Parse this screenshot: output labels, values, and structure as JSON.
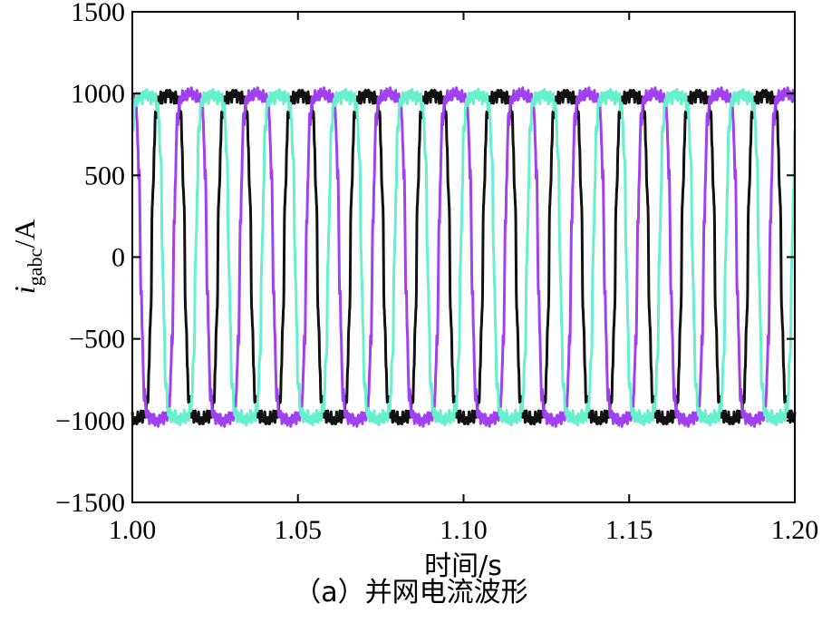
{
  "chart_data": {
    "type": "line",
    "title": "",
    "xlabel": "时间/s",
    "ylabel": {
      "var": "i",
      "sub": "gabc",
      "unit": "/A"
    },
    "caption": "（a）并网电流波形",
    "xlim": [
      1.0,
      1.2
    ],
    "ylim": [
      -1500,
      1500
    ],
    "xticks": [
      1.0,
      1.05,
      1.1,
      1.15,
      1.2
    ],
    "xtick_labels": [
      "1.00",
      "1.05",
      "1.10",
      "1.15",
      "1.20"
    ],
    "yticks": [
      -1500,
      -1000,
      -500,
      0,
      500,
      1000,
      1500
    ],
    "ytick_labels": [
      "−1500",
      "−1000",
      "−500",
      "0",
      "500",
      "1000",
      "1500"
    ],
    "grid": false,
    "legend": "none",
    "frequency_hz": 50,
    "series": [
      {
        "color": "#111111",
        "amplitude": 1050,
        "phase_deg": -105
      },
      {
        "color": "#a040f0",
        "amplitude": 1050,
        "phase_deg": 135
      },
      {
        "color": "#66f0cc",
        "amplitude": 1050,
        "phase_deg": 15
      }
    ]
  }
}
